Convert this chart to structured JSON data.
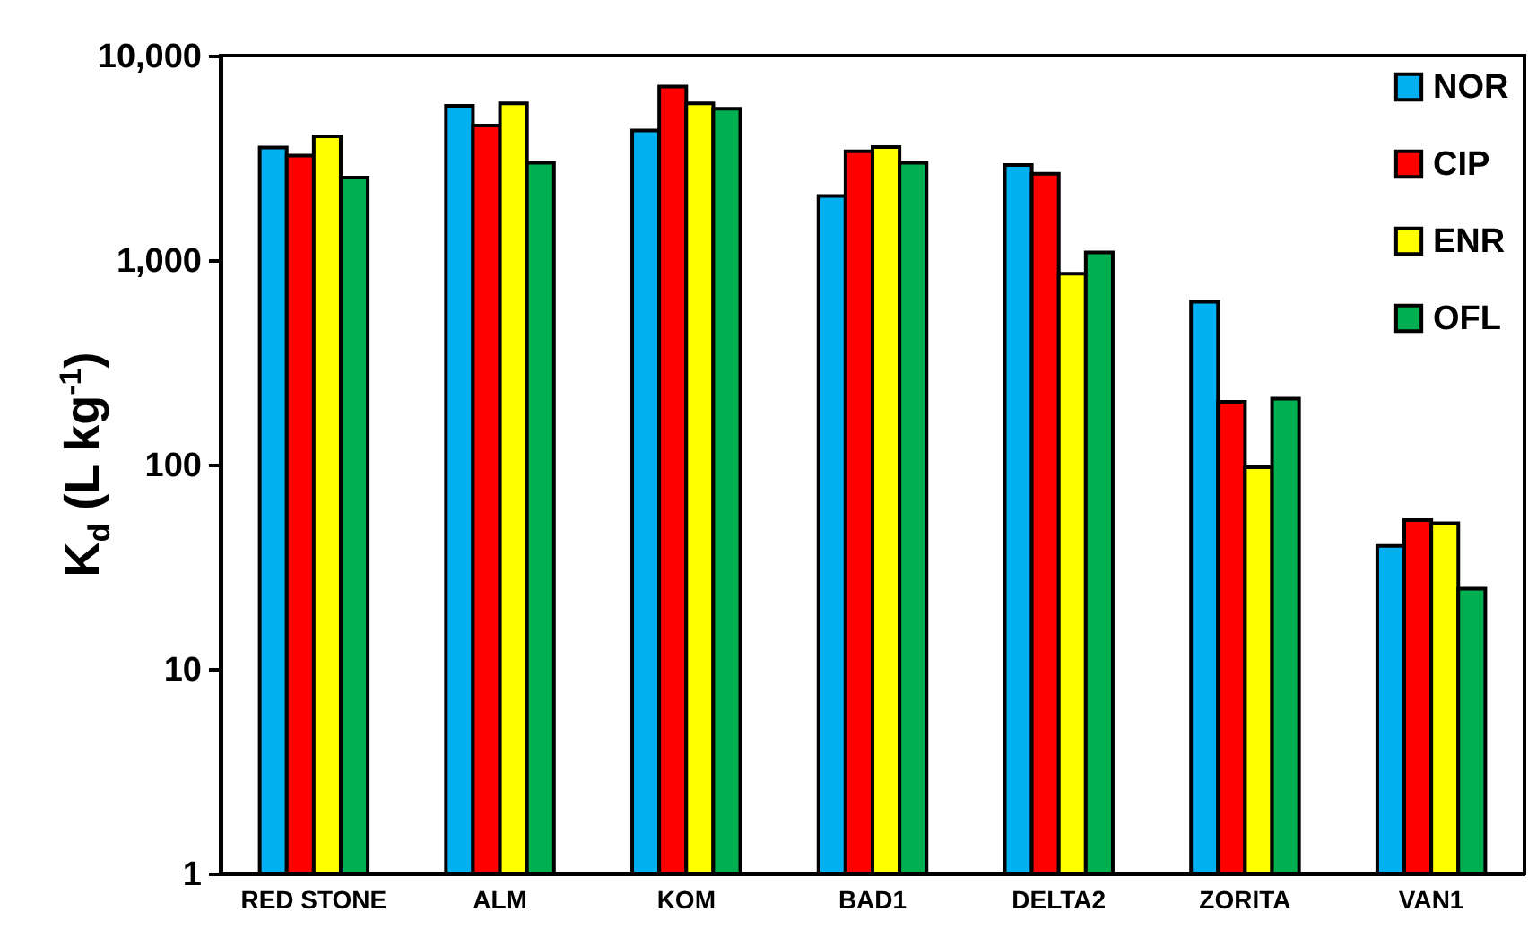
{
  "chart_data": {
    "type": "bar",
    "ylabel": "K$_{d}$ (L kg$^{-1}$)",
    "categories": [
      "RED STONE",
      "ALM",
      "KOM",
      "BAD1",
      "DELTA2",
      "ZORITA",
      "VAN1"
    ],
    "series": [
      {
        "name": "NOR",
        "color": "#00b0f0",
        "values": [
          3550,
          5680,
          4300,
          2060,
          2920,
          625,
          40
        ]
      },
      {
        "name": "CIP",
        "color": "#ff0000",
        "values": [
          3240,
          4550,
          7050,
          3400,
          2640,
          203,
          53.5
        ]
      },
      {
        "name": "ENR",
        "color": "#ffff00",
        "values": [
          4030,
          5840,
          5840,
          3570,
          857,
          97,
          51.6
        ]
      },
      {
        "name": "OFL",
        "color": "#00b050",
        "values": [
          2530,
          2990,
          5500,
          2990,
          1090,
          210,
          24.7
        ]
      }
    ],
    "log": true,
    "ylim": [
      1,
      10000
    ],
    "yticks": [
      1,
      10,
      100,
      {
        "value": 1000,
        "label": "1,000"
      },
      {
        "value": 10000,
        "label": "10,000"
      }
    ],
    "grid": false,
    "legend": "top right"
  }
}
